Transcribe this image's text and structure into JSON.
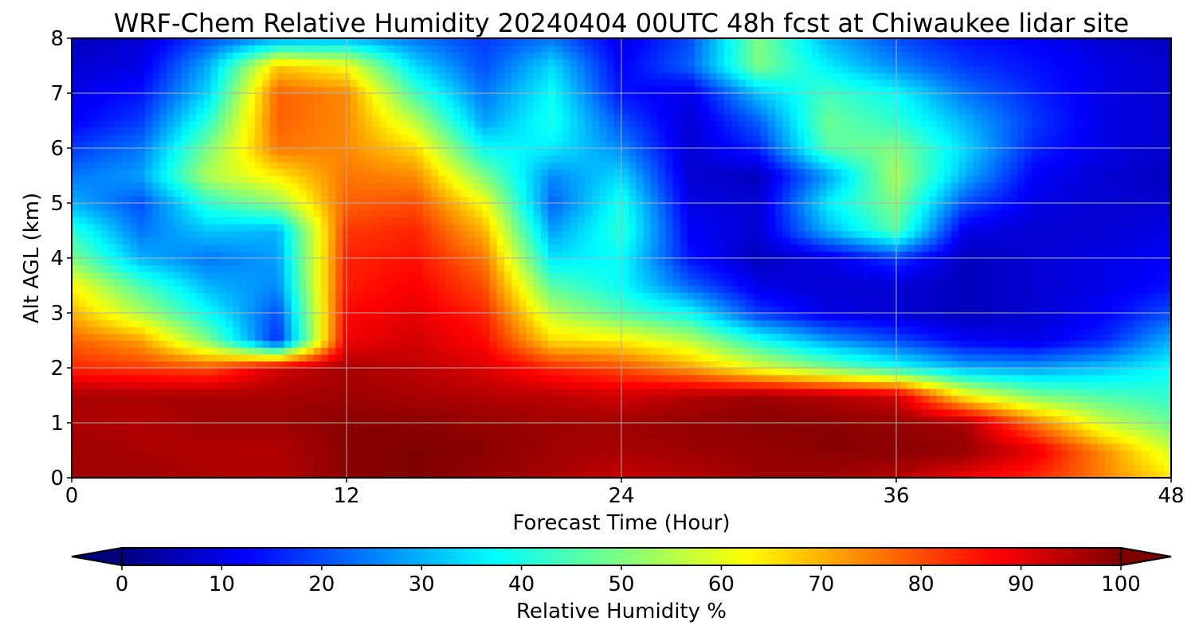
{
  "chart_data": {
    "type": "heatmap",
    "title": "WRF-Chem Relative Humidity 20240404 00UTC 48h fcst at Chiwaukee lidar site",
    "xlabel": "Forecast Time (Hour)",
    "ylabel": "Alt AGL (km)",
    "xlim": [
      0,
      48
    ],
    "ylim": [
      0,
      8
    ],
    "x_ticks": [
      0,
      12,
      24,
      36,
      48
    ],
    "y_ticks": [
      0,
      1,
      2,
      3,
      4,
      5,
      6,
      7,
      8
    ],
    "grid": true,
    "colorbar": {
      "label": "Relative Humidity %",
      "ticks": [
        0,
        10,
        20,
        30,
        40,
        50,
        60,
        70,
        80,
        90,
        100
      ],
      "range": [
        0,
        100
      ],
      "extend": "both",
      "colormap": "jet",
      "under_color": "#00007f",
      "over_color": "#7f0000"
    },
    "x": [
      0,
      3,
      6,
      9,
      12,
      15,
      18,
      21,
      24,
      27,
      30,
      33,
      36,
      39,
      42,
      45,
      48
    ],
    "y": [
      0,
      0.5,
      1,
      1.5,
      2,
      2.5,
      3,
      3.5,
      4,
      4.5,
      5,
      5.5,
      6,
      6.5,
      7,
      7.5,
      8
    ],
    "z": [
      [
        97,
        97,
        96,
        95,
        99,
        100,
        98,
        96,
        93,
        95,
        97,
        97,
        95,
        89,
        84,
        75,
        65
      ],
      [
        97,
        96,
        95,
        95,
        99,
        100,
        99,
        97,
        96,
        97,
        98,
        99,
        99,
        98,
        90,
        74,
        58
      ],
      [
        96,
        95,
        97,
        97,
        99,
        99,
        98,
        97,
        97,
        98,
        99,
        99,
        98,
        96,
        76,
        58,
        48
      ],
      [
        96,
        96,
        96,
        96,
        97,
        96,
        95,
        94,
        92,
        95,
        97,
        95,
        92,
        63,
        50,
        45,
        42
      ],
      [
        84,
        82,
        80,
        92,
        96,
        94,
        91,
        84,
        80,
        72,
        60,
        50,
        40,
        30,
        28,
        32,
        38
      ],
      [
        78,
        72,
        50,
        16,
        89,
        92,
        87,
        66,
        64,
        56,
        40,
        28,
        20,
        12,
        10,
        16,
        30
      ],
      [
        70,
        55,
        38,
        20,
        87,
        90,
        84,
        56,
        46,
        38,
        18,
        10,
        8,
        6,
        8,
        12,
        20
      ],
      [
        63,
        45,
        30,
        26,
        85,
        88,
        80,
        46,
        38,
        22,
        10,
        8,
        8,
        6,
        8,
        10,
        14
      ],
      [
        50,
        30,
        24,
        28,
        84,
        86,
        76,
        35,
        38,
        14,
        6,
        10,
        18,
        6,
        8,
        10,
        12
      ],
      [
        42,
        24,
        32,
        30,
        82,
        84,
        70,
        28,
        42,
        12,
        8,
        30,
        46,
        10,
        8,
        8,
        10
      ],
      [
        30,
        20,
        42,
        52,
        78,
        80,
        62,
        22,
        40,
        10,
        8,
        36,
        50,
        20,
        10,
        8,
        8
      ],
      [
        24,
        28,
        55,
        64,
        76,
        74,
        50,
        26,
        34,
        8,
        6,
        28,
        54,
        30,
        12,
        8,
        6
      ],
      [
        18,
        24,
        50,
        76,
        74,
        66,
        38,
        36,
        26,
        8,
        16,
        46,
        50,
        34,
        16,
        10,
        8
      ],
      [
        12,
        18,
        42,
        78,
        74,
        56,
        28,
        40,
        20,
        8,
        22,
        48,
        42,
        30,
        18,
        10,
        8
      ],
      [
        10,
        14,
        34,
        78,
        74,
        44,
        24,
        38,
        14,
        10,
        32,
        44,
        38,
        24,
        16,
        10,
        8
      ],
      [
        8,
        10,
        30,
        68,
        62,
        34,
        20,
        34,
        12,
        22,
        50,
        36,
        26,
        18,
        14,
        10,
        8
      ],
      [
        6,
        8,
        20,
        28,
        30,
        24,
        18,
        24,
        10,
        20,
        50,
        30,
        20,
        14,
        12,
        8,
        6
      ]
    ]
  }
}
